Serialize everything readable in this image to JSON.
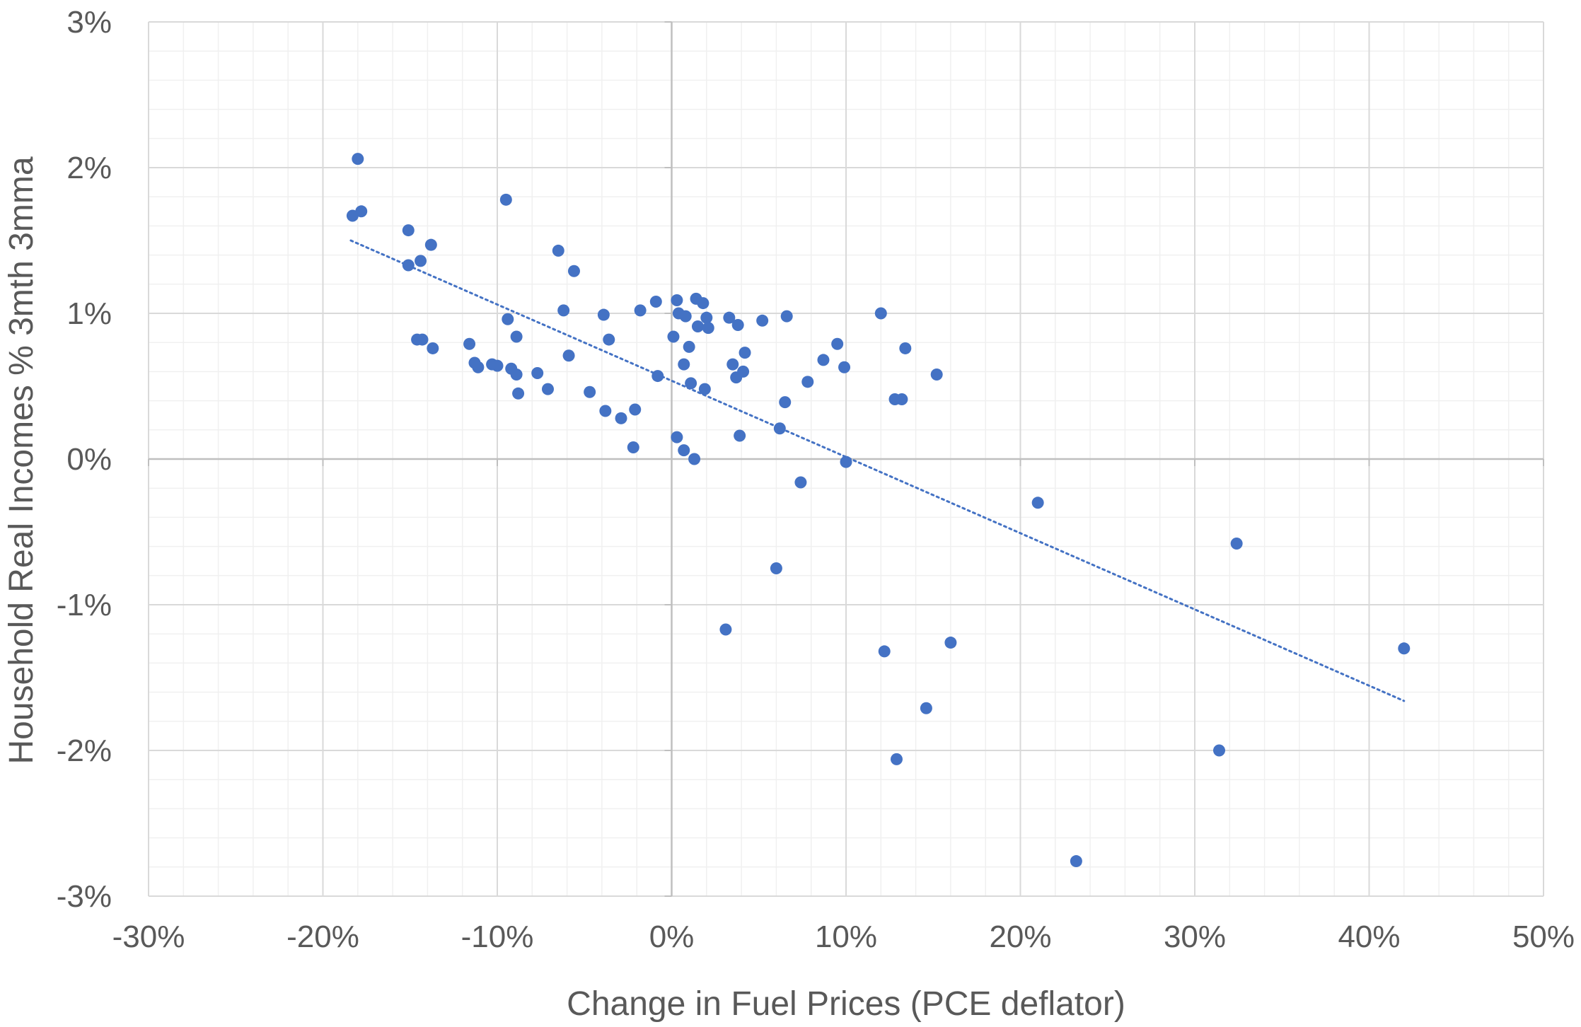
{
  "chart_data": {
    "type": "scatter",
    "title": "",
    "xlabel": "Change in Fuel Prices (PCE deflator)",
    "ylabel": "Household Real Incomes % 3mth 3mma",
    "xlim": [
      -0.3,
      0.5
    ],
    "ylim": [
      -0.03,
      0.03
    ],
    "x_major_step": 0.1,
    "y_major_step": 0.01,
    "x_minor_step": 0.02,
    "y_minor_step": 0.002,
    "grid": true,
    "legend": "none",
    "x_tick_labels": [
      "-30%",
      "-20%",
      "-10%",
      "0%",
      "10%",
      "20%",
      "30%",
      "40%",
      "50%"
    ],
    "y_tick_labels": [
      "-3%",
      "-2%",
      "-1%",
      "0%",
      "1%",
      "2%",
      "3%"
    ],
    "colors": {
      "point": "#4472C4",
      "trendline": "#4472C4",
      "major_grid": "#D9D9D9",
      "minor_grid": "#F0F0F0",
      "zero_axis": "#BFBFBF",
      "text": "#595959"
    },
    "trendline": {
      "type": "linear",
      "style": "dotted",
      "x": [
        -0.184,
        0.42
      ],
      "y": [
        0.015,
        -0.0166
      ]
    },
    "series": [
      {
        "points": [
          [
            -0.18,
            0.0206
          ],
          [
            -0.183,
            0.0167
          ],
          [
            -0.178,
            0.017
          ],
          [
            -0.151,
            0.0157
          ],
          [
            -0.151,
            0.0133
          ],
          [
            -0.144,
            0.0136
          ],
          [
            -0.138,
            0.0147
          ],
          [
            -0.146,
            0.0082
          ],
          [
            -0.143,
            0.0082
          ],
          [
            -0.137,
            0.0076
          ],
          [
            -0.116,
            0.0079
          ],
          [
            -0.113,
            0.0066
          ],
          [
            -0.111,
            0.0063
          ],
          [
            -0.103,
            0.0065
          ],
          [
            -0.1,
            0.0064
          ],
          [
            -0.095,
            0.0178
          ],
          [
            -0.094,
            0.0096
          ],
          [
            -0.092,
            0.0062
          ],
          [
            -0.089,
            0.0084
          ],
          [
            -0.089,
            0.0058
          ],
          [
            -0.088,
            0.0045
          ],
          [
            -0.077,
            0.0059
          ],
          [
            -0.071,
            0.0048
          ],
          [
            -0.065,
            0.0143
          ],
          [
            -0.062,
            0.0102
          ],
          [
            -0.059,
            0.0071
          ],
          [
            -0.056,
            0.0129
          ],
          [
            -0.047,
            0.0046
          ],
          [
            -0.039,
            0.0099
          ],
          [
            -0.038,
            0.0033
          ],
          [
            -0.036,
            0.0082
          ],
          [
            -0.029,
            0.0028
          ],
          [
            -0.022,
            0.0008
          ],
          [
            -0.021,
            0.0034
          ],
          [
            -0.018,
            0.0102
          ],
          [
            -0.009,
            0.0108
          ],
          [
            -0.008,
            0.0057
          ],
          [
            0.001,
            0.0084
          ],
          [
            0.003,
            0.0015
          ],
          [
            0.003,
            0.0109
          ],
          [
            0.004,
            0.01
          ],
          [
            0.007,
            0.0065
          ],
          [
            0.007,
            0.0006
          ],
          [
            0.008,
            0.0098
          ],
          [
            0.01,
            0.0077
          ],
          [
            0.011,
            0.0052
          ],
          [
            0.013,
            0.0
          ],
          [
            0.014,
            0.011
          ],
          [
            0.015,
            0.0091
          ],
          [
            0.018,
            0.0107
          ],
          [
            0.019,
            0.0048
          ],
          [
            0.02,
            0.0097
          ],
          [
            0.021,
            0.009
          ],
          [
            0.031,
            -0.0117
          ],
          [
            0.033,
            0.0097
          ],
          [
            0.035,
            0.0065
          ],
          [
            0.037,
            0.0056
          ],
          [
            0.038,
            0.0092
          ],
          [
            0.039,
            0.0016
          ],
          [
            0.041,
            0.006
          ],
          [
            0.042,
            0.0073
          ],
          [
            0.052,
            0.0095
          ],
          [
            0.06,
            -0.0075
          ],
          [
            0.062,
            0.0021
          ],
          [
            0.065,
            0.0039
          ],
          [
            0.066,
            0.0098
          ],
          [
            0.074,
            -0.0016
          ],
          [
            0.078,
            0.0053
          ],
          [
            0.087,
            0.0068
          ],
          [
            0.095,
            0.0079
          ],
          [
            0.099,
            0.0063
          ],
          [
            0.1,
            -0.0002
          ],
          [
            0.12,
            0.01
          ],
          [
            0.122,
            -0.0132
          ],
          [
            0.128,
            0.0041
          ],
          [
            0.129,
            -0.0206
          ],
          [
            0.132,
            0.0041
          ],
          [
            0.134,
            0.0076
          ],
          [
            0.146,
            -0.0171
          ],
          [
            0.152,
            0.0058
          ],
          [
            0.16,
            -0.0126
          ],
          [
            0.21,
            -0.003
          ],
          [
            0.232,
            -0.0276
          ],
          [
            0.314,
            -0.02
          ],
          [
            0.324,
            -0.0058
          ],
          [
            0.42,
            -0.013
          ]
        ]
      }
    ]
  }
}
